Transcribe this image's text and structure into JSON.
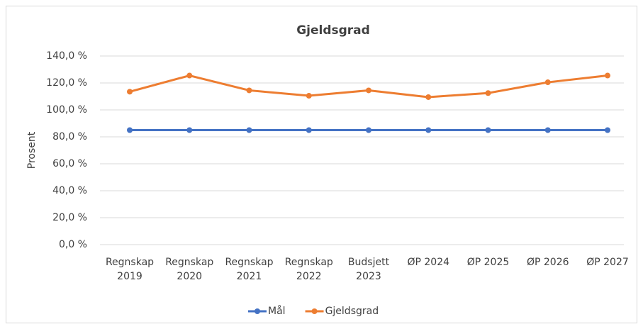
{
  "chart_data": {
    "type": "line",
    "title": "Gjeldsgrad",
    "y_label": "Prosent",
    "categories": [
      "Regnskap 2019",
      "Regnskap 2020",
      "Regnskap 2021",
      "Regnskap 2022",
      "Budsjett 2023",
      "ØP 2024",
      "ØP 2025",
      "ØP 2026",
      "ØP 2027"
    ],
    "series": [
      {
        "name": "Mål",
        "color": "#4472c4",
        "values": [
          85,
          85,
          85,
          85,
          85,
          85,
          85,
          85,
          85
        ]
      },
      {
        "name": "Gjeldsgrad",
        "color": "#ed7d31",
        "values": [
          113.5,
          125.5,
          114.5,
          110.5,
          114.5,
          109.5,
          112.5,
          120.5,
          125.5
        ]
      }
    ],
    "ylim": [
      0,
      140
    ],
    "yticks": [
      {
        "value": 0,
        "label": "0,0 %"
      },
      {
        "value": 20,
        "label": "20,0 %"
      },
      {
        "value": 40,
        "label": "40,0 %"
      },
      {
        "value": 60,
        "label": "60,0 %"
      },
      {
        "value": 80,
        "label": "80,0 %"
      },
      {
        "value": 100,
        "label": "100,0 %"
      },
      {
        "value": 120,
        "label": "120,0 %"
      },
      {
        "value": 140,
        "label": "140,0 %"
      }
    ],
    "grid": true,
    "legend": "bottom"
  }
}
